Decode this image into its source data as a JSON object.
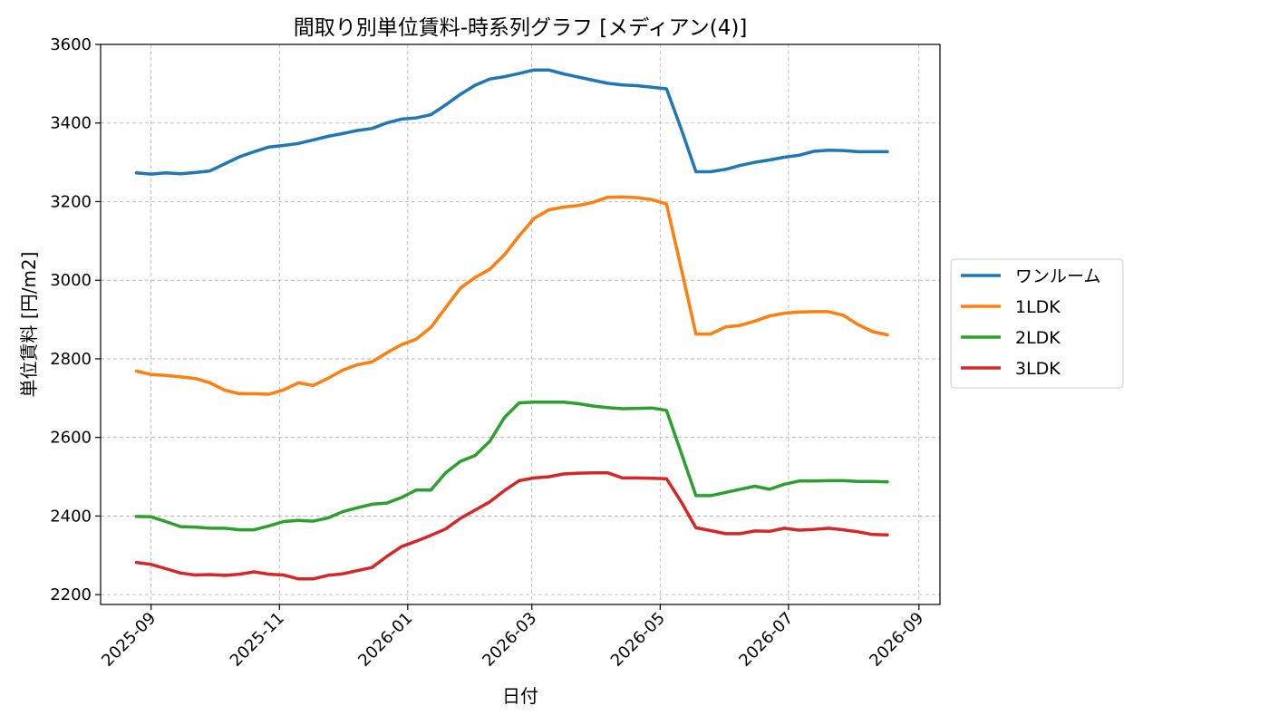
{
  "chart_data": {
    "type": "line",
    "title": "間取り別単位賃料-時系列グラフ [メディアン(4)]",
    "xlabel": "日付",
    "ylabel": "単位賃料 [円/m2]",
    "ylim": [
      2175,
      3600
    ],
    "yticks": [
      2200,
      2400,
      2600,
      2800,
      3000,
      3200,
      3400,
      3600
    ],
    "xlim": [
      "2025-08-08",
      "2026-09-11"
    ],
    "xticks": [
      "2025-09",
      "2025-11",
      "2026-01",
      "2026-03",
      "2026-05",
      "2026-07",
      "2026-09"
    ],
    "grid": true,
    "legend_position": "outside-right",
    "x": [
      "2025-08-25",
      "2025-09-01",
      "2025-09-08",
      "2025-09-15",
      "2025-09-22",
      "2025-09-29",
      "2025-10-06",
      "2025-10-13",
      "2025-10-20",
      "2025-10-27",
      "2025-11-03",
      "2025-11-10",
      "2025-11-17",
      "2025-11-24",
      "2025-12-01",
      "2025-12-08",
      "2025-12-15",
      "2025-12-22",
      "2025-12-29",
      "2026-01-05",
      "2026-01-12",
      "2026-01-19",
      "2026-01-26",
      "2026-02-02",
      "2026-02-09",
      "2026-02-16",
      "2026-02-23",
      "2026-03-02",
      "2026-03-09",
      "2026-03-16",
      "2026-03-23",
      "2026-03-30",
      "2026-04-06",
      "2026-04-13",
      "2026-04-20",
      "2026-04-27",
      "2026-05-04",
      "2026-05-11",
      "2026-05-18",
      "2026-05-25",
      "2026-06-01",
      "2026-06-08",
      "2026-06-15",
      "2026-06-22",
      "2026-06-29",
      "2026-07-06",
      "2026-07-13",
      "2026-07-20",
      "2026-07-27",
      "2026-08-03",
      "2026-08-10",
      "2026-08-17"
    ],
    "series": [
      {
        "name": "ワンルーム",
        "color": "#1f77b4",
        "values": [
          3273,
          3270,
          3273,
          3271,
          3274,
          3278,
          3296,
          3314,
          3327,
          3339,
          3343,
          3348,
          3357,
          3366,
          3373,
          3381,
          3386,
          3400,
          3410,
          3413,
          3421,
          3446,
          3473,
          3496,
          3512,
          3518,
          3526,
          3535,
          3535,
          3525,
          3517,
          3509,
          3501,
          3497,
          3495,
          3491,
          3487,
          3385,
          3276,
          3276,
          3282,
          3292,
          3300,
          3306,
          3313,
          3318,
          3328,
          3331,
          3330,
          3327,
          3327,
          3327
        ]
      },
      {
        "name": "1LDK",
        "color": "#ff7f0e",
        "values": [
          2769,
          2760,
          2758,
          2754,
          2750,
          2739,
          2720,
          2711,
          2711,
          2710,
          2721,
          2739,
          2732,
          2750,
          2771,
          2785,
          2792,
          2815,
          2836,
          2850,
          2880,
          2930,
          2980,
          3007,
          3028,
          3065,
          3113,
          3157,
          3179,
          3186,
          3190,
          3198,
          3211,
          3212,
          3210,
          3205,
          3194,
          3030,
          2863,
          2863,
          2881,
          2885,
          2896,
          2909,
          2916,
          2919,
          2920,
          2920,
          2911,
          2887,
          2869,
          2861
        ]
      },
      {
        "name": "2LDK",
        "color": "#2ca02c",
        "values": [
          2399,
          2398,
          2386,
          2373,
          2372,
          2369,
          2369,
          2365,
          2365,
          2375,
          2386,
          2389,
          2387,
          2395,
          2411,
          2421,
          2430,
          2433,
          2447,
          2466,
          2466,
          2510,
          2539,
          2554,
          2590,
          2651,
          2688,
          2690,
          2690,
          2690,
          2686,
          2680,
          2676,
          2673,
          2674,
          2675,
          2669,
          2561,
          2452,
          2452,
          2460,
          2468,
          2476,
          2468,
          2481,
          2489,
          2489,
          2490,
          2490,
          2488,
          2488,
          2487
        ]
      },
      {
        "name": "3LDK",
        "color": "#d62728",
        "values": [
          2282,
          2277,
          2266,
          2255,
          2250,
          2251,
          2249,
          2252,
          2258,
          2252,
          2250,
          2240,
          2240,
          2249,
          2253,
          2261,
          2269,
          2297,
          2322,
          2336,
          2351,
          2367,
          2394,
          2415,
          2436,
          2465,
          2490,
          2497,
          2500,
          2507,
          2509,
          2510,
          2510,
          2497,
          2497,
          2496,
          2495,
          2436,
          2370,
          2363,
          2355,
          2355,
          2362,
          2361,
          2369,
          2364,
          2366,
          2369,
          2365,
          2360,
          2353,
          2352
        ]
      }
    ]
  }
}
